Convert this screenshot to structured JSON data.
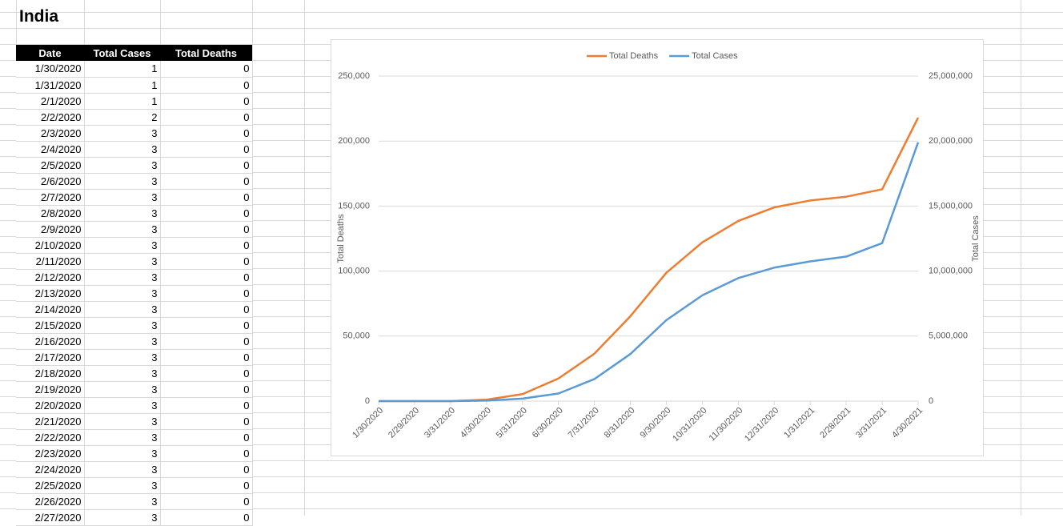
{
  "title": "India",
  "table": {
    "header": [
      "Date",
      "Total Cases",
      "Total Deaths"
    ],
    "rows": [
      [
        "1/30/2020",
        1,
        0
      ],
      [
        "1/31/2020",
        1,
        0
      ],
      [
        "2/1/2020",
        1,
        0
      ],
      [
        "2/2/2020",
        2,
        0
      ],
      [
        "2/3/2020",
        3,
        0
      ],
      [
        "2/4/2020",
        3,
        0
      ],
      [
        "2/5/2020",
        3,
        0
      ],
      [
        "2/6/2020",
        3,
        0
      ],
      [
        "2/7/2020",
        3,
        0
      ],
      [
        "2/8/2020",
        3,
        0
      ],
      [
        "2/9/2020",
        3,
        0
      ],
      [
        "2/10/2020",
        3,
        0
      ],
      [
        "2/11/2020",
        3,
        0
      ],
      [
        "2/12/2020",
        3,
        0
      ],
      [
        "2/13/2020",
        3,
        0
      ],
      [
        "2/14/2020",
        3,
        0
      ],
      [
        "2/15/2020",
        3,
        0
      ],
      [
        "2/16/2020",
        3,
        0
      ],
      [
        "2/17/2020",
        3,
        0
      ],
      [
        "2/18/2020",
        3,
        0
      ],
      [
        "2/19/2020",
        3,
        0
      ],
      [
        "2/20/2020",
        3,
        0
      ],
      [
        "2/21/2020",
        3,
        0
      ],
      [
        "2/22/2020",
        3,
        0
      ],
      [
        "2/23/2020",
        3,
        0
      ],
      [
        "2/24/2020",
        3,
        0
      ],
      [
        "2/25/2020",
        3,
        0
      ],
      [
        "2/26/2020",
        3,
        0
      ],
      [
        "2/27/2020",
        3,
        0
      ]
    ]
  },
  "chart_data": {
    "type": "line",
    "categories": [
      "1/30/2020",
      "2/29/2020",
      "3/31/2020",
      "4/30/2020",
      "5/31/2020",
      "6/30/2020",
      "7/31/2020",
      "8/31/2020",
      "9/30/2020",
      "10/31/2020",
      "11/30/2020",
      "12/31/2020",
      "1/31/2021",
      "2/28/2021",
      "3/31/2021",
      "4/30/2021"
    ],
    "series": [
      {
        "name": "Total Deaths",
        "color": "#ED7D31",
        "axis": "y",
        "values": [
          0,
          0,
          35,
          1100,
          5400,
          17400,
          36500,
          65300,
          98700,
          122100,
          138600,
          149000,
          154300,
          157200,
          162900,
          218000
        ]
      },
      {
        "name": "Total Cases",
        "color": "#5B9BD5",
        "axis": "y2",
        "values": [
          1,
          3,
          1397,
          34863,
          190535,
          585493,
          1695988,
          3621245,
          6225763,
          8137119,
          9462809,
          10266674,
          10746174,
          11112056,
          12149335,
          19900000
        ]
      }
    ],
    "y_label": "Total Deaths",
    "y2_label": "Total Cases",
    "ylim": [
      0,
      250000
    ],
    "yticks": [
      0,
      {
        "value": 50000,
        "label": "50,000"
      },
      {
        "value": 100000,
        "label": "100,000"
      },
      {
        "value": 150000,
        "label": "150,000"
      },
      {
        "value": 200000,
        "label": "200,000"
      },
      {
        "value": 250000,
        "label": "250,000"
      }
    ],
    "y2lim": [
      0,
      25000000
    ],
    "y2ticks": [
      0,
      {
        "value": 5000000,
        "label": "5,000,000"
      },
      {
        "value": 10000000,
        "label": "10,000,000"
      },
      {
        "value": 15000000,
        "label": "15,000,000"
      },
      {
        "value": 20000000,
        "label": "20,000,000"
      },
      {
        "value": 25000000,
        "label": "25,000,000"
      }
    ],
    "grid": true,
    "legend": "top"
  }
}
